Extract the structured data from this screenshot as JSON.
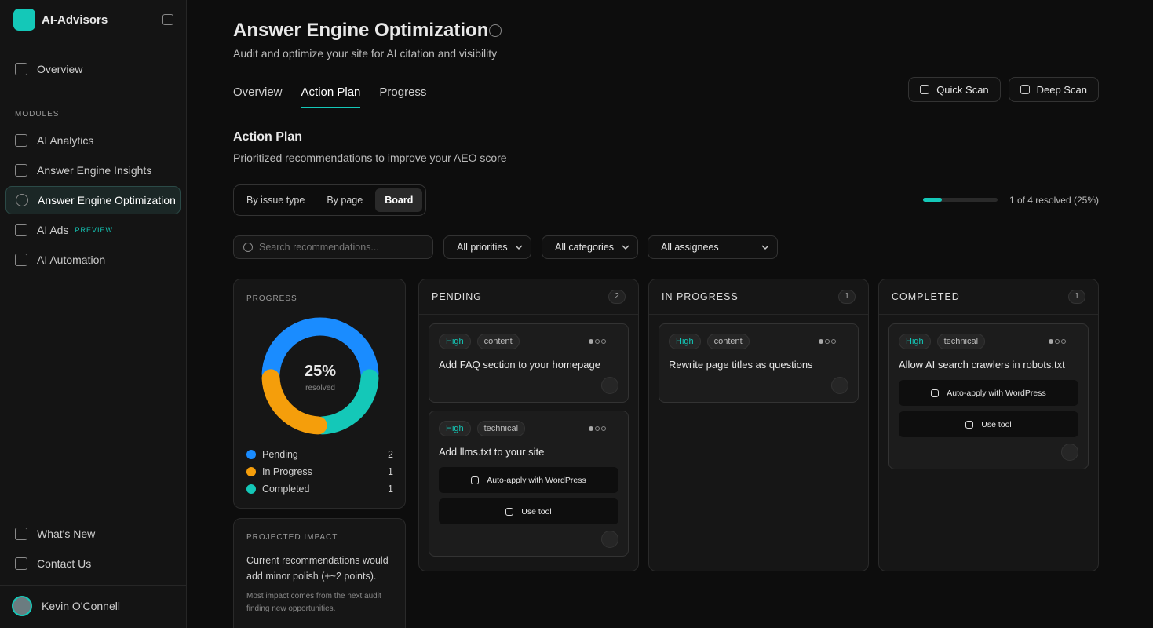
{
  "sidebar": {
    "brand": "AI-Advisors",
    "nav": [
      "Overview"
    ],
    "section": "MODULES",
    "modules": [
      {
        "label": "AI Analytics"
      },
      {
        "label": "Answer Engine Insights"
      },
      {
        "label": "Answer Engine Optimization"
      },
      {
        "label": "AI Ads",
        "badge": "PREVIEW"
      },
      {
        "label": "AI Automation"
      }
    ],
    "footer_links": [
      "What's New",
      "Contact Us"
    ],
    "user": "Kevin O'Connell"
  },
  "header": {
    "title": "Answer Engine Optimization",
    "subtitle": "Audit and optimize your site for AI citation and visibility"
  },
  "tabs": [
    "Overview",
    "Action Plan",
    "Progress"
  ],
  "actions": [
    "Quick Scan",
    "Deep Scan"
  ],
  "section": {
    "title": "Action Plan",
    "subtitle": "Prioritized recommendations to improve your AEO score"
  },
  "views": [
    "By issue type",
    "By page",
    "Board"
  ],
  "resolved": "1 of 4 resolved (25%)",
  "search_placeholder": "Search recommendations...",
  "filters": [
    "All priorities",
    "All categories",
    "All assignees"
  ],
  "progress": {
    "title": "PROGRESS",
    "percent": "25%",
    "caption": "resolved",
    "legend": [
      {
        "label": "Pending",
        "count": 2,
        "color": "#1a8cff"
      },
      {
        "label": "In Progress",
        "count": 1,
        "color": "#f59e0b"
      },
      {
        "label": "Completed",
        "count": 1,
        "color": "#14c8b8"
      }
    ]
  },
  "impact": {
    "title": "PROJECTED IMPACT",
    "text": "Current recommendations would add minor polish (+~2 points).",
    "note": "Most impact comes from the next audit finding new opportunities."
  },
  "columns": [
    {
      "title": "PENDING",
      "count": 2,
      "cards": [
        {
          "priority": "High",
          "category": "content",
          "title": "Add FAQ section to your homepage",
          "actions": []
        },
        {
          "priority": "High",
          "category": "technical",
          "title": "Add llms.txt to your site",
          "actions": [
            "Auto-apply with WordPress",
            "Use tool"
          ]
        }
      ]
    },
    {
      "title": "IN PROGRESS",
      "count": 1,
      "cards": [
        {
          "priority": "High",
          "category": "content",
          "title": "Rewrite page titles as questions",
          "actions": []
        }
      ]
    },
    {
      "title": "COMPLETED",
      "count": 1,
      "cards": [
        {
          "priority": "High",
          "category": "technical",
          "title": "Allow AI search crawlers in robots.txt",
          "actions": [
            "Auto-apply with WordPress",
            "Use tool"
          ]
        }
      ]
    }
  ]
}
